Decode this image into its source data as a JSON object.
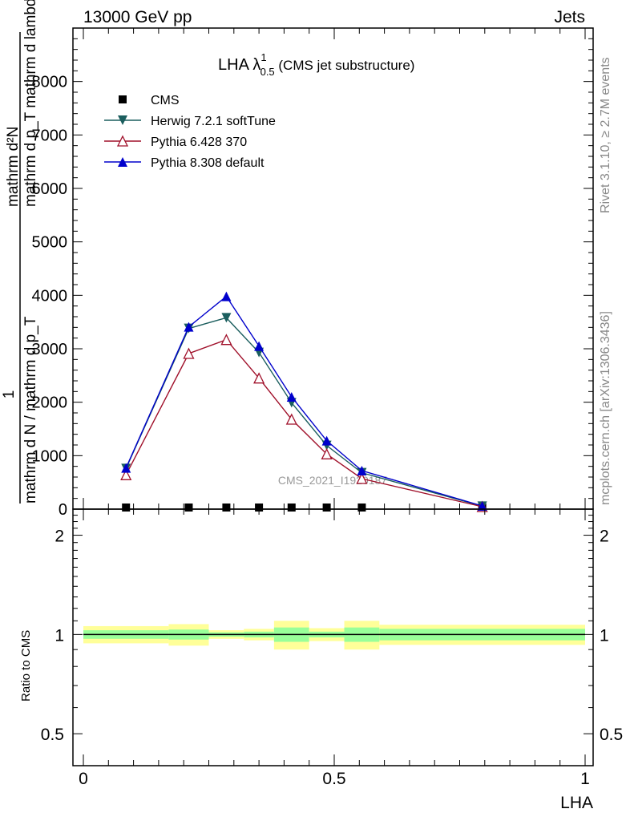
{
  "header": {
    "left": "13000 GeV pp",
    "right": "Jets"
  },
  "side_labels": {
    "rivet": "Rivet 3.1.10, ≥ 2.7M events",
    "mcplots": "mcplots.cern.ch [arXiv:1306.3436]"
  },
  "chart_data": [
    {
      "type": "line",
      "title_main": "LHA λ",
      "title_sup": "1",
      "title_sub": "0.5",
      "title_rest": " (CMS jet substructure)",
      "watermark": "CMS_2021_I1920187",
      "ylabel": "1 / mathrm d N / mathrm d p_T mathrm d ... mathrm d^2N / mathrm d p_T mathrm d lambda",
      "ylabel_top": "mathrm d²N",
      "ylabel_top2": "mathrm d p_T mathrm d lambda",
      "ylabel_num": "1",
      "ylabel_bottom": "mathrm d N / mathrm d p_T",
      "xlim": [
        0,
        1
      ],
      "ylim": [
        0,
        9000
      ],
      "yticks": [
        {
          "v": 0,
          "label": "0"
        },
        {
          "v": 1000,
          "label": "1000"
        },
        {
          "v": 2000,
          "label": "2000"
        },
        {
          "v": 3000,
          "label": "3000"
        },
        {
          "v": 4000,
          "label": "4000"
        },
        {
          "v": 5000,
          "label": "5000"
        },
        {
          "v": 6000,
          "label": "6000"
        },
        {
          "v": 7000,
          "label": "7000"
        },
        {
          "v": 8000,
          "label": "8000"
        }
      ],
      "legend_position": "top-left",
      "series": [
        {
          "name": "CMS",
          "color": "#000000",
          "marker": "square",
          "x": [
            0.085,
            0.21,
            0.285,
            0.35,
            0.415,
            0.485,
            0.555,
            0.795
          ],
          "y": [
            15,
            15,
            15,
            15,
            15,
            15,
            15,
            15
          ]
        },
        {
          "name": "Herwig 7.2.1 softTune",
          "color": "#1b5e5e",
          "marker": "triangle-down",
          "x": [
            0.085,
            0.21,
            0.285,
            0.35,
            0.415,
            0.485,
            0.555,
            0.795
          ],
          "y": [
            760,
            3380,
            3580,
            2930,
            1990,
            1190,
            680,
            55
          ]
        },
        {
          "name": "Pythia 6.428 370",
          "color": "#a0102a",
          "marker": "triangle-up-open",
          "x": [
            0.085,
            0.21,
            0.285,
            0.35,
            0.415,
            0.485,
            0.555,
            0.795
          ],
          "y": [
            640,
            2910,
            3170,
            2450,
            1680,
            1030,
            570,
            45
          ]
        },
        {
          "name": "Pythia 8.308 default",
          "color": "#0000cc",
          "marker": "triangle-up",
          "x": [
            0.085,
            0.21,
            0.285,
            0.35,
            0.415,
            0.485,
            0.555,
            0.795
          ],
          "y": [
            770,
            3410,
            3980,
            3050,
            2100,
            1280,
            720,
            60
          ]
        }
      ]
    },
    {
      "type": "area",
      "ylabel": "Ratio to CMS",
      "xlabel": "LHA",
      "xlim": [
        0,
        1
      ],
      "ylim": [
        0.4,
        2.4
      ],
      "log_y": true,
      "yticks": [
        {
          "v": 0.5,
          "label": "0.5"
        },
        {
          "v": 1,
          "label": "1"
        },
        {
          "v": 2,
          "label": "2"
        }
      ],
      "xticks": [
        {
          "v": 0,
          "label": "0"
        },
        {
          "v": 0.5,
          "label": "0.5"
        },
        {
          "v": 1,
          "label": "1"
        }
      ],
      "reference_line": 1,
      "bands": [
        {
          "x0": 0.0,
          "x1": 0.17,
          "stat": 0.03,
          "total": 0.06
        },
        {
          "x0": 0.17,
          "x1": 0.25,
          "stat": 0.035,
          "total": 0.075
        },
        {
          "x0": 0.25,
          "x1": 0.32,
          "stat": 0.015,
          "total": 0.03
        },
        {
          "x0": 0.32,
          "x1": 0.38,
          "stat": 0.02,
          "total": 0.04
        },
        {
          "x0": 0.38,
          "x1": 0.45,
          "stat": 0.05,
          "total": 0.1
        },
        {
          "x0": 0.45,
          "x1": 0.52,
          "stat": 0.02,
          "total": 0.045
        },
        {
          "x0": 0.52,
          "x1": 0.59,
          "stat": 0.05,
          "total": 0.1
        },
        {
          "x0": 0.59,
          "x1": 1.0,
          "stat": 0.04,
          "total": 0.07
        }
      ],
      "band_colors": {
        "stat": "#99ff99",
        "total": "#ffff99"
      }
    }
  ]
}
